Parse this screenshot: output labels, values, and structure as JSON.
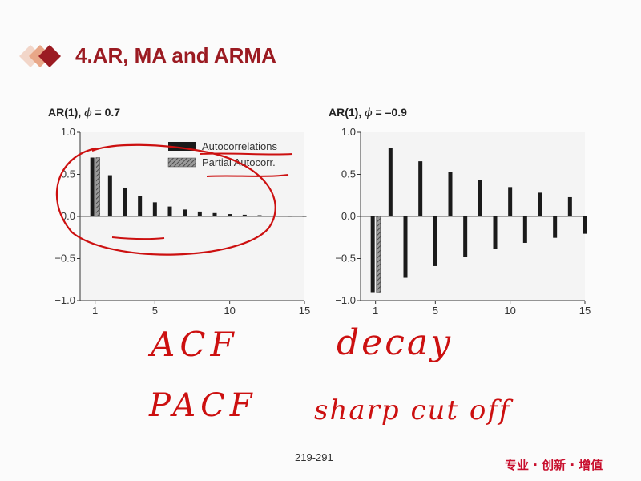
{
  "slide": {
    "title": "4.AR, MA and ARMA",
    "page_number": "219-291",
    "slogan": "专业 · 创新 · 增值",
    "accent_color": "#9b1b22",
    "diamond_colors": [
      "#f2d6c9",
      "#e8a788",
      "#9b1b22"
    ]
  },
  "charts": [
    {
      "title_prefix": "AR(1), ",
      "phi_symbol": "ϕ",
      "title_suffix": " = 0.7"
    },
    {
      "title_prefix": "AR(1), ",
      "phi_symbol": "ϕ",
      "title_suffix": " = –0.9"
    }
  ],
  "annotations": {
    "acf": "ACF",
    "decay": "decay",
    "pacf": "PACF",
    "sharp_cut_off": "sharp cut off",
    "color": "#cc1010"
  },
  "chart_data": [
    {
      "type": "bar",
      "title": "AR(1), ϕ = 0.7",
      "x": [
        1,
        2,
        3,
        4,
        5,
        6,
        7,
        8,
        9,
        10,
        11,
        12,
        13,
        14,
        15
      ],
      "xticks": [
        1,
        5,
        10,
        15
      ],
      "xtick_labels": [
        "1",
        "5",
        "10",
        "15"
      ],
      "xlim": [
        0,
        15
      ],
      "ylim": [
        -1.0,
        1.0
      ],
      "yticks": [
        1.0,
        0.5,
        0.0,
        -0.5,
        -1.0
      ],
      "ytick_labels": [
        "1.0",
        "0.5",
        "0.0",
        "−0.5",
        "−1.0"
      ],
      "legend": {
        "position": "top-right",
        "entries": [
          "Autocorrelations",
          "Partial Autocorr."
        ]
      },
      "series": [
        {
          "name": "Autocorrelations",
          "style": "solid",
          "color": "#1a1a1a",
          "values": [
            0.7,
            0.49,
            0.343,
            0.24,
            0.168,
            0.118,
            0.082,
            0.058,
            0.04,
            0.028,
            0.02,
            0.014,
            0.01,
            0.007,
            0.005
          ]
        },
        {
          "name": "Partial Autocorr.",
          "style": "hatched",
          "color": "#777777",
          "values": [
            0.7,
            0,
            0,
            0,
            0,
            0,
            0,
            0,
            0,
            0,
            0,
            0,
            0,
            0,
            0
          ]
        }
      ]
    },
    {
      "type": "bar",
      "title": "AR(1), ϕ = –0.9",
      "x": [
        1,
        2,
        3,
        4,
        5,
        6,
        7,
        8,
        9,
        10,
        11,
        12,
        13,
        14,
        15
      ],
      "xticks": [
        1,
        5,
        10,
        15
      ],
      "xtick_labels": [
        "1",
        "5",
        "10",
        "15"
      ],
      "xlim": [
        0,
        15
      ],
      "ylim": [
        -1.0,
        1.0
      ],
      "yticks": [
        1.0,
        0.5,
        0.0,
        -0.5,
        -1.0
      ],
      "ytick_labels": [
        "1.0",
        "0.5",
        "0.0",
        "−0.5",
        "−1.0"
      ],
      "series": [
        {
          "name": "Autocorrelations",
          "style": "solid",
          "color": "#1a1a1a",
          "values": [
            -0.9,
            0.81,
            -0.729,
            0.656,
            -0.59,
            0.531,
            -0.478,
            0.43,
            -0.387,
            0.349,
            -0.314,
            0.282,
            -0.254,
            0.229,
            -0.206
          ]
        },
        {
          "name": "Partial Autocorr.",
          "style": "hatched",
          "color": "#777777",
          "values": [
            -0.9,
            0,
            0,
            0,
            0,
            0,
            0,
            0,
            0,
            0,
            0,
            0,
            0,
            0,
            0
          ]
        }
      ]
    }
  ]
}
